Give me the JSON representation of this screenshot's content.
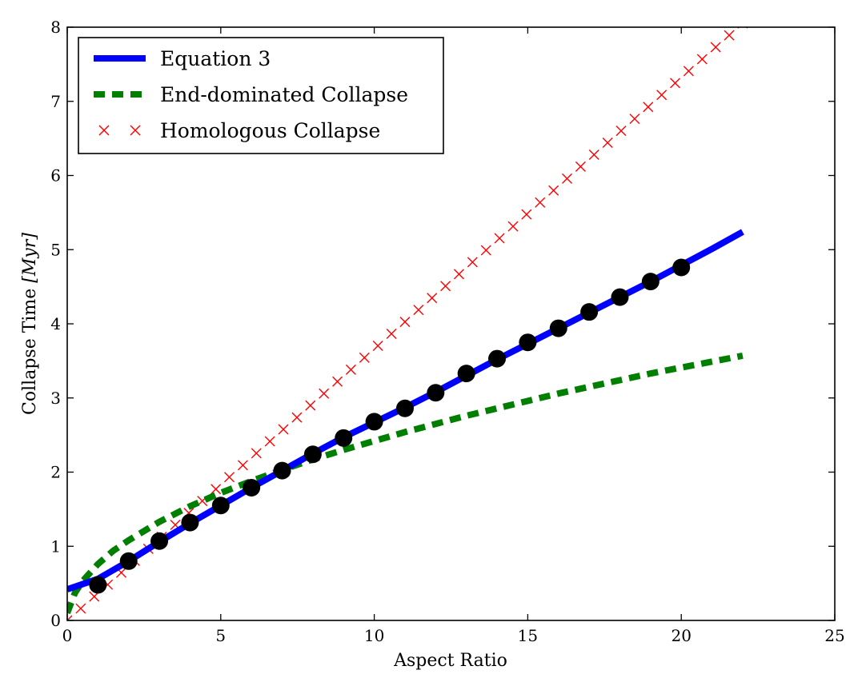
{
  "chart_data": {
    "type": "line",
    "xlabel": "Aspect Ratio",
    "ylabel_text": "Collapse Time ",
    "ylabel_unit": "[Myr]",
    "xlim": [
      0,
      25
    ],
    "ylim": [
      0,
      8
    ],
    "xticks": [
      0,
      5,
      10,
      15,
      20,
      25
    ],
    "yticks": [
      0,
      1,
      2,
      3,
      4,
      5,
      6,
      7,
      8
    ],
    "grid": false,
    "legend_position": "top-left",
    "series": [
      {
        "name": "Equation 3",
        "style": "solid",
        "color": "#0000ff",
        "x": [
          0,
          1,
          2,
          3,
          4,
          5,
          6,
          7,
          8,
          9,
          10,
          11,
          12,
          13,
          14,
          15,
          16,
          17,
          18,
          19,
          20,
          21,
          22
        ],
        "y": [
          0.42,
          0.56,
          0.8,
          1.06,
          1.31,
          1.55,
          1.79,
          2.02,
          2.25,
          2.47,
          2.67,
          2.87,
          3.08,
          3.3,
          3.52,
          3.73,
          3.94,
          4.15,
          4.36,
          4.57,
          4.79,
          5.01,
          5.24
        ]
      },
      {
        "name": "End-dominated Collapse",
        "style": "dashed",
        "color": "#007f00",
        "x": [
          0,
          0.25,
          0.5,
          1,
          1.5,
          2,
          3,
          4,
          5,
          6,
          7,
          8,
          9,
          10,
          11,
          12,
          13,
          14,
          15,
          16,
          17,
          18,
          19,
          20,
          21,
          22
        ],
        "y": [
          0.1,
          0.37,
          0.53,
          0.76,
          0.94,
          1.08,
          1.33,
          1.54,
          1.72,
          1.88,
          2.03,
          2.17,
          2.3,
          2.42,
          2.54,
          2.65,
          2.76,
          2.86,
          2.96,
          3.06,
          3.15,
          3.24,
          3.33,
          3.41,
          3.49,
          3.57
        ]
      },
      {
        "name": "Homologous Collapse",
        "style": "markers-x",
        "color": "#ff0000",
        "slope": 0.366,
        "x_start": 0,
        "x_end": 22,
        "x_step": 0.44
      },
      {
        "name": "",
        "style": "markers-dot",
        "color": "#000000",
        "x": [
          1,
          2,
          3,
          4,
          5,
          6,
          7,
          8,
          9,
          10,
          11,
          12,
          13,
          14,
          15,
          16,
          17,
          18,
          19,
          20
        ],
        "y": [
          0.48,
          0.8,
          1.07,
          1.32,
          1.55,
          1.79,
          2.02,
          2.24,
          2.46,
          2.68,
          2.86,
          3.07,
          3.33,
          3.53,
          3.75,
          3.94,
          4.16,
          4.36,
          4.57,
          4.76
        ]
      }
    ]
  }
}
